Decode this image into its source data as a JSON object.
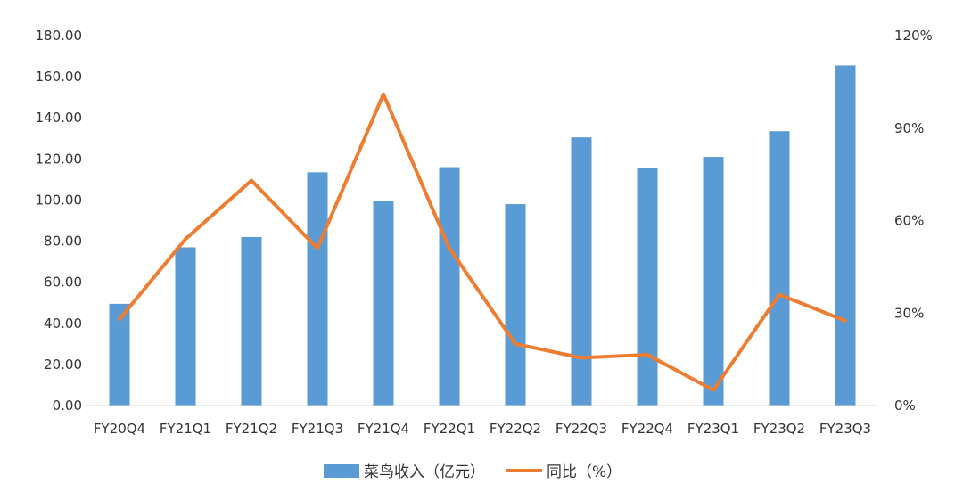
{
  "chart_data": {
    "type": "bar",
    "categories": [
      "FY20Q4",
      "FY21Q1",
      "FY21Q2",
      "FY21Q3",
      "FY21Q4",
      "FY22Q1",
      "FY22Q2",
      "FY22Q3",
      "FY22Q4",
      "FY23Q1",
      "FY23Q2",
      "FY23Q3"
    ],
    "series": [
      {
        "name": "菜鸟收入（亿元）",
        "type": "bar",
        "axis": "left",
        "color": "#5b9bd5",
        "values": [
          49.5,
          77.0,
          82.0,
          113.5,
          99.5,
          116.0,
          98.0,
          130.5,
          115.5,
          121.0,
          133.5,
          165.5
        ]
      },
      {
        "name": "同比（%）",
        "type": "line",
        "axis": "right",
        "color": "#ed7d31",
        "values": [
          28,
          54,
          73,
          51,
          101,
          51,
          20,
          15.5,
          16.5,
          5,
          36,
          27.5
        ]
      }
    ],
    "y_left": {
      "ylim": [
        0,
        180
      ],
      "ticks": [
        "0.00",
        "20.00",
        "40.00",
        "60.00",
        "80.00",
        "100.00",
        "120.00",
        "140.00",
        "160.00",
        "180.00"
      ]
    },
    "y_right": {
      "ylim": [
        0,
        120
      ],
      "ticks": [
        "0%",
        "30%",
        "60%",
        "90%",
        "120%"
      ]
    },
    "grid": false,
    "legend_position": "bottom"
  }
}
